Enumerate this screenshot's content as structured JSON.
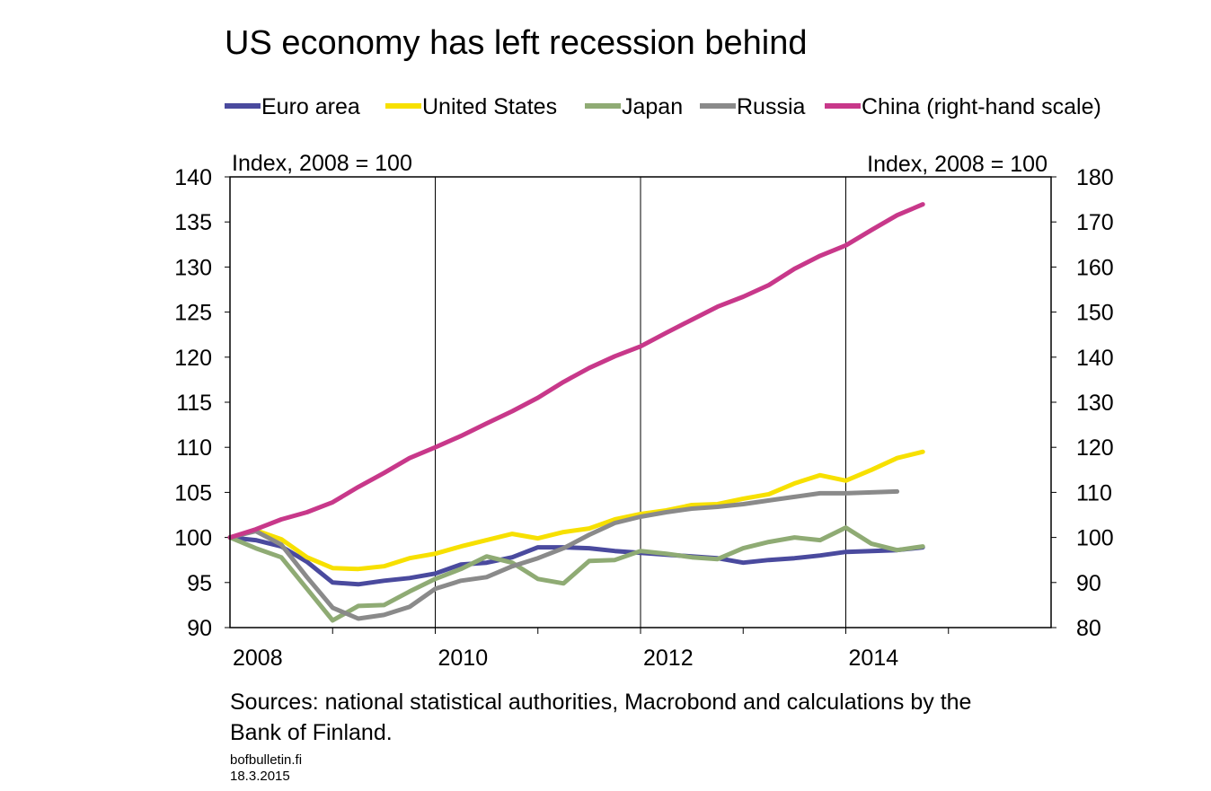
{
  "chart_data": {
    "type": "line",
    "title": "US economy has left recession behind",
    "left_axis_label": "Index, 2008 = 100",
    "right_axis_label": "Index, 2008 = 100",
    "x_ticks": [
      "2008",
      "2010",
      "2012",
      "2014"
    ],
    "xlim": [
      2008,
      2016
    ],
    "ylim_left": [
      90,
      140
    ],
    "y_ticks_left": [
      "90",
      "95",
      "100",
      "105",
      "110",
      "115",
      "120",
      "125",
      "130",
      "135",
      "140"
    ],
    "ylim_right": [
      80,
      180
    ],
    "y_ticks_right": [
      "80",
      "90",
      "100",
      "110",
      "120",
      "130",
      "140",
      "150",
      "160",
      "170",
      "180"
    ],
    "grid": true,
    "series": [
      {
        "name": "Euro area",
        "axis": "left",
        "color": "#4a4a9e",
        "x": [
          2008.0,
          2008.25,
          2008.5,
          2008.75,
          2009.0,
          2009.25,
          2009.5,
          2009.75,
          2010.0,
          2010.25,
          2010.5,
          2010.75,
          2011.0,
          2011.25,
          2011.5,
          2011.75,
          2012.0,
          2012.25,
          2012.5,
          2012.75,
          2013.0,
          2013.25,
          2013.5,
          2013.75,
          2014.0,
          2014.25,
          2014.5,
          2014.75
        ],
        "values": [
          100.0,
          99.7,
          99.0,
          97.3,
          95.0,
          94.8,
          95.2,
          95.5,
          96.0,
          97.0,
          97.2,
          97.8,
          98.9,
          98.9,
          98.8,
          98.5,
          98.3,
          98.1,
          97.9,
          97.7,
          97.2,
          97.5,
          97.7,
          98.0,
          98.4,
          98.5,
          98.6,
          98.9
        ]
      },
      {
        "name": "United States",
        "axis": "left",
        "color": "#f7e000",
        "x": [
          2008.0,
          2008.25,
          2008.5,
          2008.75,
          2009.0,
          2009.25,
          2009.5,
          2009.75,
          2010.0,
          2010.25,
          2010.5,
          2010.75,
          2011.0,
          2011.25,
          2011.5,
          2011.75,
          2012.0,
          2012.25,
          2012.5,
          2012.75,
          2013.0,
          2013.25,
          2013.5,
          2013.75,
          2014.0,
          2014.25,
          2014.5,
          2014.75
        ],
        "values": [
          100.0,
          100.8,
          99.8,
          97.8,
          96.6,
          96.5,
          96.8,
          97.7,
          98.2,
          99.0,
          99.7,
          100.4,
          99.9,
          100.6,
          101.0,
          102.0,
          102.6,
          103.0,
          103.6,
          103.7,
          104.3,
          104.8,
          106.0,
          106.9,
          106.3,
          107.5,
          108.8,
          109.5
        ]
      },
      {
        "name": "Japan",
        "axis": "left",
        "color": "#8fab74",
        "x": [
          2008.0,
          2008.25,
          2008.5,
          2008.75,
          2009.0,
          2009.25,
          2009.5,
          2009.75,
          2010.0,
          2010.25,
          2010.5,
          2010.75,
          2011.0,
          2011.25,
          2011.5,
          2011.75,
          2012.0,
          2012.25,
          2012.5,
          2012.75,
          2013.0,
          2013.25,
          2013.5,
          2013.75,
          2014.0,
          2014.25,
          2014.5,
          2014.75
        ],
        "values": [
          100.0,
          98.8,
          97.8,
          94.3,
          90.8,
          92.4,
          92.5,
          94.0,
          95.4,
          96.5,
          97.9,
          97.2,
          95.4,
          94.9,
          97.4,
          97.5,
          98.5,
          98.2,
          97.8,
          97.6,
          98.8,
          99.5,
          100.0,
          99.7,
          101.1,
          99.3,
          98.6,
          99.0
        ]
      },
      {
        "name": "Russia",
        "axis": "left",
        "color": "#8a8a8a",
        "x": [
          2008.0,
          2008.25,
          2008.5,
          2008.75,
          2009.0,
          2009.25,
          2009.5,
          2009.75,
          2010.0,
          2010.25,
          2010.5,
          2010.75,
          2011.0,
          2011.25,
          2011.5,
          2011.75,
          2012.0,
          2012.25,
          2012.5,
          2012.75,
          2013.0,
          2013.25,
          2013.5,
          2013.75,
          2014.0,
          2014.25,
          2014.5
        ],
        "values": [
          100.0,
          100.7,
          99.2,
          95.6,
          92.2,
          91.0,
          91.4,
          92.3,
          94.3,
          95.2,
          95.6,
          96.8,
          97.7,
          98.8,
          100.3,
          101.6,
          102.3,
          102.8,
          103.2,
          103.4,
          103.7,
          104.1,
          104.5,
          104.9,
          104.9,
          105.0,
          105.1
        ]
      },
      {
        "name": "China (right-hand scale)",
        "axis": "right",
        "color": "#c8388a",
        "x": [
          2008.0,
          2008.25,
          2008.5,
          2008.75,
          2009.0,
          2009.25,
          2009.5,
          2009.75,
          2010.0,
          2010.25,
          2010.5,
          2010.75,
          2011.0,
          2011.25,
          2011.5,
          2011.75,
          2012.0,
          2012.25,
          2012.5,
          2012.75,
          2013.0,
          2013.25,
          2013.5,
          2013.75,
          2014.0,
          2014.25,
          2014.5,
          2014.75
        ],
        "values": [
          100.0,
          101.8,
          104.0,
          105.6,
          107.8,
          111.2,
          114.3,
          117.6,
          120.0,
          122.5,
          125.3,
          128.0,
          131.0,
          134.5,
          137.6,
          140.2,
          142.4,
          145.4,
          148.3,
          151.2,
          153.4,
          156.0,
          159.6,
          162.5,
          164.8,
          168.2,
          171.5,
          173.9
        ]
      }
    ]
  },
  "footer": {
    "sources": [
      "Sources: national statistical authorities, Macrobond and calculations by the",
      "Bank of Finland."
    ],
    "site": "bofbulletin.fi",
    "date": "18.3.2015"
  }
}
